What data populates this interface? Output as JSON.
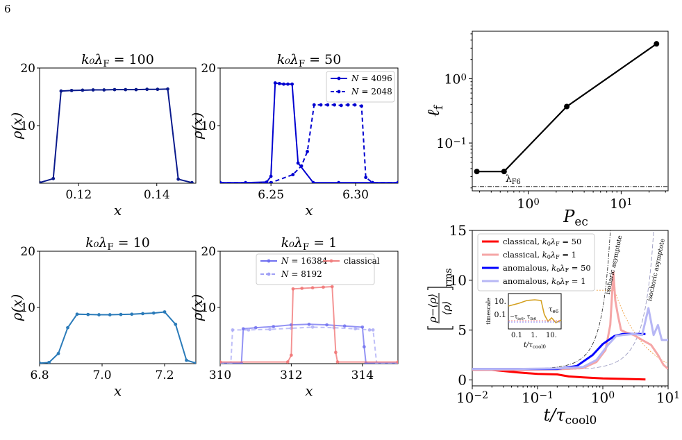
{
  "page_number": "6",
  "chart_data": [
    {
      "id": "p1",
      "type": "line",
      "title": "k₀λ₀ = 100",
      "title_main": "k₀λ",
      "title_sub": "F",
      "title_rest": " = 100",
      "xlabel": "x",
      "ylabel": "ρ(x)",
      "xlim": [
        0.11,
        0.15
      ],
      "ylim": [
        0,
        20
      ],
      "xticks": [
        0.12,
        0.14
      ],
      "xticklabels": [
        "0.12",
        "0.14"
      ],
      "yticks": [
        10,
        20
      ],
      "yticklabels": [
        "10",
        "20"
      ],
      "series": [
        {
          "color": "#0a1a8c",
          "dashed": false,
          "marker": true,
          "x": [
            0.11,
            0.1135,
            0.1155,
            0.1182,
            0.121,
            0.1237,
            0.1265,
            0.1292,
            0.132,
            0.1347,
            0.1375,
            0.1402,
            0.1428,
            0.1455,
            0.149
          ],
          "y": [
            0.1,
            0.8,
            16.0,
            16.1,
            16.15,
            16.2,
            16.2,
            16.25,
            16.25,
            16.25,
            16.3,
            16.3,
            16.35,
            0.7,
            0.1
          ]
        }
      ]
    },
    {
      "id": "p2",
      "type": "line",
      "title": "k₀λF = 50",
      "title_main": "k₀λ",
      "title_sub": "F",
      "title_rest": " = 50",
      "xlabel": "x",
      "ylabel": "ρ(x)",
      "xlim": [
        6.22,
        6.325
      ],
      "ylim": [
        0,
        20
      ],
      "xticks": [
        6.25,
        6.3
      ],
      "xticklabels": [
        "6.25",
        "6.30"
      ],
      "yticks": [
        10,
        20
      ],
      "yticklabels": [
        "10",
        "20"
      ],
      "legend": {
        "loc": "upper-right",
        "entries": [
          {
            "label_pre": "N = ",
            "label_val": "4096",
            "color": "#0000d0",
            "dashed": false
          },
          {
            "label_pre": "N = ",
            "label_val": "2048",
            "color": "#0000d0",
            "dashed": true
          }
        ]
      },
      "series": [
        {
          "color": "#0000d0",
          "dashed": false,
          "marker": true,
          "x": [
            6.22,
            6.235,
            6.2475,
            6.25,
            6.2525,
            6.255,
            6.2575,
            6.26,
            6.2625,
            6.266,
            6.275,
            6.29,
            6.31,
            6.325
          ],
          "y": [
            0.1,
            0.1,
            0.2,
            1.2,
            17.4,
            17.3,
            17.2,
            17.2,
            17.2,
            3.5,
            0.1,
            0.1,
            0.1,
            0.1
          ]
        },
        {
          "color": "#0000d0",
          "dashed": true,
          "marker": true,
          "x": [
            6.22,
            6.25,
            6.263,
            6.268,
            6.2715,
            6.2755,
            6.2795,
            6.2835,
            6.2875,
            6.2915,
            6.2955,
            6.2995,
            6.3035,
            6.306,
            6.31,
            6.325
          ],
          "y": [
            0.1,
            0.1,
            1.5,
            3.0,
            5.5,
            13.6,
            13.6,
            13.6,
            13.6,
            13.5,
            13.6,
            13.6,
            13.4,
            1.0,
            0.1,
            0.1
          ]
        }
      ]
    },
    {
      "id": "p3",
      "type": "line",
      "title": "k₀λF = 10",
      "title_main": "k₀λ",
      "title_sub": "F",
      "title_rest": " = 10",
      "xlabel": "x",
      "ylabel": "ρ(x)",
      "xlim": [
        6.8,
        7.3
      ],
      "ylim": [
        0,
        20
      ],
      "xticks": [
        6.8,
        7.0,
        7.2
      ],
      "xticklabels": [
        "6.8",
        "7.0",
        "7.2"
      ],
      "yticks": [
        10,
        20
      ],
      "yticklabels": [
        "10",
        "20"
      ],
      "series": [
        {
          "color": "#2b7bb9",
          "dashed": false,
          "marker": true,
          "x": [
            6.8,
            6.83,
            6.86,
            6.89,
            6.92,
            6.955,
            6.99,
            7.025,
            7.06,
            7.095,
            7.13,
            7.165,
            7.2,
            7.235,
            7.27,
            7.3
          ],
          "y": [
            0.1,
            0.2,
            1.8,
            6.4,
            8.8,
            8.75,
            8.7,
            8.7,
            8.75,
            8.8,
            8.9,
            9.0,
            9.2,
            7.0,
            0.6,
            0.1
          ]
        }
      ]
    },
    {
      "id": "p4",
      "type": "line",
      "title": "k₀λF = 1",
      "title_main": "k₀λ",
      "title_sub": "F",
      "title_rest": " = 1",
      "xlabel": "x",
      "ylabel": "ρ(x)",
      "xlim": [
        310,
        315
      ],
      "ylim": [
        0,
        20
      ],
      "xticks": [
        310,
        312,
        314
      ],
      "xticklabels": [
        "310",
        "312",
        "314"
      ],
      "yticks": [
        10,
        20
      ],
      "yticklabels": [
        "10",
        "20"
      ],
      "legend": {
        "loc": "upper",
        "entries": [
          {
            "label_pre": "N = ",
            "label_val": "16384",
            "color": "#6f6ff0",
            "dashed": false
          },
          {
            "label_pre": "N = ",
            "label_val": "8192",
            "color": "#9f9ff5",
            "dashed": true
          },
          {
            "label_pre": "",
            "label_val": "classical",
            "color": "#f08080",
            "dashed": false
          }
        ]
      },
      "series": [
        {
          "color": "#6f6ff0",
          "dashed": false,
          "marker": true,
          "x": [
            310,
            310.6,
            310.65,
            311.0,
            311.5,
            312.0,
            312.5,
            313.0,
            313.5,
            314.0,
            314.05,
            314.1,
            315
          ],
          "y": [
            0.1,
            0.1,
            6.2,
            6.4,
            6.6,
            6.9,
            7.0,
            6.9,
            6.7,
            6.5,
            3.0,
            0.1,
            0.1
          ]
        },
        {
          "color": "#a9a9f5",
          "dashed": true,
          "marker": true,
          "x": [
            310,
            310.3,
            310.35,
            310.8,
            311.4,
            312.0,
            312.6,
            313.2,
            313.8,
            314.2,
            314.3,
            314.4,
            315
          ],
          "y": [
            0.1,
            0.1,
            6.0,
            6.0,
            6.1,
            6.3,
            6.5,
            6.4,
            6.2,
            6.0,
            6.0,
            0.1,
            0.1
          ]
        },
        {
          "color": "#f07070",
          "dashed": false,
          "marker": true,
          "x": [
            310,
            311.9,
            312.0,
            312.05,
            312.3,
            312.6,
            312.9,
            313.15,
            313.25,
            313.3,
            315
          ],
          "y": [
            0.3,
            0.3,
            1.5,
            13.3,
            13.4,
            13.5,
            13.6,
            13.7,
            2.0,
            0.3,
            0.3
          ]
        }
      ]
    },
    {
      "id": "p5",
      "type": "line",
      "xlabel": "P",
      "xlabel_sub": "e",
      "xlabel_subsub": "c",
      "ylabel": "ℓ",
      "ylabel_sub": "f",
      "xscale": "log",
      "yscale": "log",
      "xlim": [
        0.25,
        32
      ],
      "ylim": [
        0.018,
        5.5
      ],
      "xticks": [
        1,
        10
      ],
      "xtick_exp": [
        "0",
        "1"
      ],
      "yticks": [
        0.1,
        1
      ],
      "ytick_exp": [
        "−1",
        "0"
      ],
      "annotation": {
        "text": "λ",
        "sub": "F6"
      },
      "hline": 0.021,
      "series": [
        {
          "color": "#000000",
          "marker": true,
          "x": [
            0.28,
            0.55,
            2.6,
            24
          ],
          "y": [
            0.036,
            0.036,
            0.37,
            3.5
          ]
        }
      ]
    },
    {
      "id": "p6",
      "type": "line",
      "xlabel": "t/τ",
      "xlabel_sub": "cool0",
      "ylabel_num": "ρ−⟨ρ⟩",
      "ylabel_den": "⟨ρ⟩",
      "ylabel_sub": "rms",
      "xscale": "log",
      "xlim": [
        0.01,
        10
      ],
      "ylim": [
        -0.6,
        15
      ],
      "xtick_exp": [
        "−2",
        "−1",
        "0",
        "1"
      ],
      "yticks": [
        0,
        5,
        10,
        15
      ],
      "yticklabels": [
        "0",
        "5",
        "10",
        "15"
      ],
      "annot_isobaric": "isobaric asymptote",
      "annot_isochoric": "isochoric asymptote",
      "legend": {
        "loc": "upper-left",
        "entries": [
          {
            "label_pre": "classical, ",
            "k": "k₀λF = 50",
            "k_val": " = 50",
            "color": "#ff0000",
            "alpha": 1
          },
          {
            "label_pre": "classical, ",
            "k": "k₀λF = 1",
            "k_val": " = 1",
            "color": "#f5a6a6",
            "alpha": 1
          },
          {
            "label_pre": "anomalous, ",
            "k": "k₀λF = 50",
            "k_val": " = 50",
            "color": "#0000ff",
            "alpha": 1
          },
          {
            "label_pre": "anomalous, ",
            "k": "k₀λF = 1",
            "k_val": " = 1",
            "color": "#b7b7f5",
            "alpha": 1
          }
        ]
      },
      "inset": {
        "ylabel": "timescale",
        "xticklabels": [
          "0.1",
          "1.",
          "10."
        ],
        "yticklabels": [
          "10.",
          "0.1"
        ],
        "label_te6": "τ",
        "label_te6_sub": "e6",
        "label_tie6": "−τ",
        "label_tie6_sub": "ie6",
        "label_tlb6": "τ",
        "label_tlb6_sub": "lb6",
        "xlabel": "t/τ",
        "xlabel_sub": "cool0"
      },
      "series": [
        {
          "name": "classical-50",
          "color": "#ff0000",
          "width": 3,
          "x": [
            0.01,
            0.02,
            0.05,
            0.1,
            0.2,
            0.3,
            0.5,
            1.0,
            2.0,
            4.5
          ],
          "y": [
            1.0,
            1.0,
            0.75,
            0.6,
            0.55,
            0.35,
            0.25,
            0.15,
            0.1,
            0.05
          ]
        },
        {
          "name": "classical-1",
          "color": "#f5a6a6",
          "width": 3,
          "x": [
            0.01,
            0.05,
            0.2,
            0.5,
            0.8,
            1.1,
            1.3,
            1.45,
            1.55,
            1.7,
            1.9,
            2.2,
            3.0,
            4.0,
            5.5,
            7.0,
            8.5,
            10
          ],
          "y": [
            1.0,
            1.0,
            1.05,
            1.2,
            1.8,
            3.0,
            5.5,
            10.8,
            8.0,
            6.5,
            5.0,
            4.8,
            4.5,
            4.0,
            3.5,
            2.5,
            1.5,
            1.1
          ]
        },
        {
          "name": "anomalous-50",
          "color": "#0000ff",
          "width": 3,
          "x": [
            0.01,
            0.05,
            0.2,
            0.4,
            0.7,
            1.0,
            1.5,
            2.0,
            3.0,
            4.5
          ],
          "y": [
            1.1,
            1.1,
            1.1,
            1.4,
            2.5,
            3.6,
            4.4,
            4.6,
            4.6,
            4.6
          ]
        },
        {
          "name": "anomalous-1",
          "color": "#b7b7f5",
          "width": 3,
          "x": [
            0.01,
            0.05,
            0.2,
            0.5,
            0.8,
            1.2,
            1.6,
            2.0,
            3.0,
            4.0,
            5.0,
            6.0,
            7.0,
            8.0,
            10
          ],
          "y": [
            1.1,
            1.1,
            1.15,
            1.3,
            2.0,
            3.5,
            4.4,
            4.5,
            4.6,
            4.5,
            7.2,
            4.5,
            5.5,
            4.0,
            4.0
          ]
        }
      ]
    }
  ]
}
